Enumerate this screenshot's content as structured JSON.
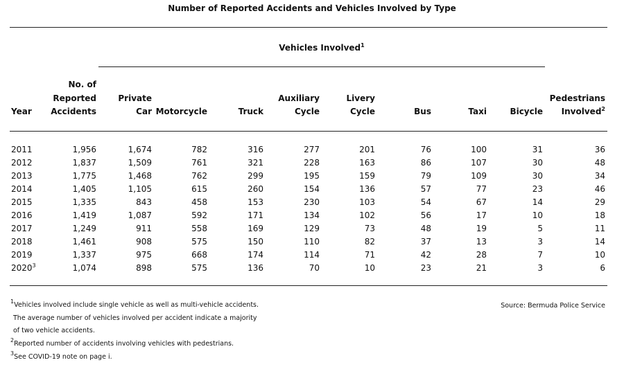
{
  "title": "Number of Reported Accidents and Vehicles Involved by Type",
  "group_header": {
    "label": "Vehicles Involved",
    "note": "1"
  },
  "columns": [
    {
      "lines": [
        "Year"
      ]
    },
    {
      "lines": [
        "No. of",
        "Reported",
        "Accidents"
      ]
    },
    {
      "lines": [
        "Private",
        "Car"
      ]
    },
    {
      "lines": [
        "Motorcycle"
      ]
    },
    {
      "lines": [
        "Truck"
      ]
    },
    {
      "lines": [
        "Auxiliary",
        "Cycle"
      ]
    },
    {
      "lines": [
        "Livery",
        "Cycle"
      ]
    },
    {
      "lines": [
        "Bus"
      ]
    },
    {
      "lines": [
        "Taxi"
      ]
    },
    {
      "lines": [
        "Bicycle"
      ]
    },
    {
      "lines": [
        "Pedestrians",
        "Involved"
      ],
      "note": "2"
    }
  ],
  "rows": [
    {
      "year": "2011",
      "values": [
        "1,956",
        "1,674",
        "782",
        "316",
        "277",
        "201",
        "76",
        "100",
        "31",
        "36"
      ]
    },
    {
      "year": "2012",
      "values": [
        "1,837",
        "1,509",
        "761",
        "321",
        "228",
        "163",
        "86",
        "107",
        "30",
        "48"
      ]
    },
    {
      "year": "2013",
      "values": [
        "1,775",
        "1,468",
        "762",
        "299",
        "195",
        "159",
        "79",
        "109",
        "30",
        "34"
      ]
    },
    {
      "year": "2014",
      "values": [
        "1,405",
        "1,105",
        "615",
        "260",
        "154",
        "136",
        "57",
        "77",
        "23",
        "46"
      ]
    },
    {
      "year": "2015",
      "values": [
        "1,335",
        "843",
        "458",
        "153",
        "230",
        "103",
        "54",
        "67",
        "14",
        "29"
      ]
    },
    {
      "year": "2016",
      "values": [
        "1,419",
        "1,087",
        "592",
        "171",
        "134",
        "102",
        "56",
        "17",
        "10",
        "18"
      ]
    },
    {
      "year": "2017",
      "values": [
        "1,249",
        "911",
        "558",
        "169",
        "129",
        "73",
        "48",
        "19",
        "5",
        "11"
      ]
    },
    {
      "year": "2018",
      "values": [
        "1,461",
        "908",
        "575",
        "150",
        "110",
        "82",
        "37",
        "13",
        "3",
        "14"
      ]
    },
    {
      "year": "2019",
      "values": [
        "1,337",
        "975",
        "668",
        "174",
        "114",
        "71",
        "42",
        "28",
        "7",
        "10"
      ]
    },
    {
      "year": "2020",
      "note": "3",
      "values": [
        "1,074",
        "898",
        "575",
        "136",
        "70",
        "10",
        "23",
        "21",
        "3",
        "6"
      ]
    }
  ],
  "footnotes": [
    {
      "mark": "1",
      "lines": [
        "Vehicles involved include single vehicle as well as multi-vehicle accidents.",
        "The average number of vehicles involved per accident indicate a majority",
        "of two vehicle accidents."
      ]
    },
    {
      "mark": "2",
      "lines": [
        "Reported number of accidents involving vehicles with pedestrians."
      ]
    },
    {
      "mark": "3",
      "lines": [
        "See COVID-19 note on page i."
      ]
    }
  ],
  "source": "Source: Bermuda Police Service"
}
